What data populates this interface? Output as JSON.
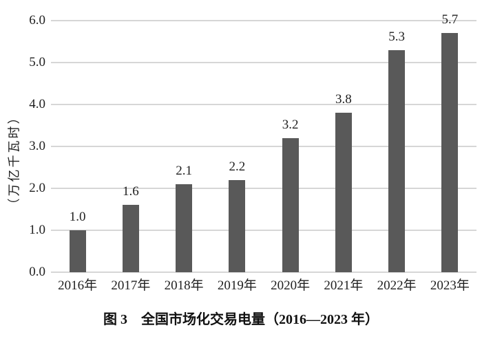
{
  "chart_data": {
    "type": "bar",
    "title": "图 3　全国市场化交易电量（2016—2023 年）",
    "ylabel": "（万亿千瓦时）",
    "xlabel": "",
    "categories": [
      "2016年",
      "2017年",
      "2018年",
      "2019年",
      "2020年",
      "2021年",
      "2022年",
      "2023年"
    ],
    "values": [
      1.0,
      1.6,
      2.1,
      2.2,
      3.2,
      3.8,
      5.3,
      5.7
    ],
    "data_labels": [
      "1.0",
      "1.6",
      "2.1",
      "2.2",
      "3.2",
      "3.8",
      "5.3",
      "5.7"
    ],
    "y_ticks": [
      "6.0",
      "5.0",
      "4.0",
      "3.0",
      "2.0",
      "1.0",
      "0.0"
    ],
    "ylim": [
      0,
      6
    ],
    "grid": true,
    "legend": "none",
    "bar_color": "#595959",
    "gridline_color": "#d6d6d6",
    "text_color": "#1f1f1f"
  }
}
